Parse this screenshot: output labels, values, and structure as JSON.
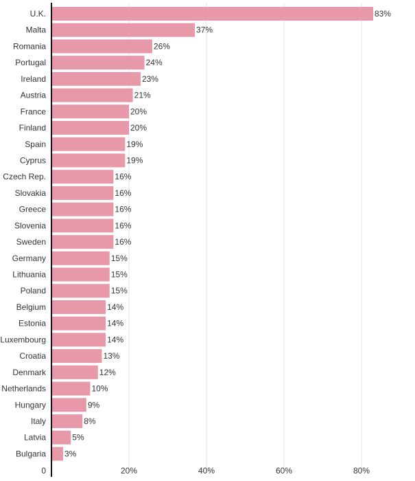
{
  "chart_data": {
    "type": "bar",
    "orientation": "horizontal",
    "title": "",
    "xlabel": "",
    "ylabel": "",
    "xlim": [
      0,
      83
    ],
    "grid": true,
    "categories": [
      "U.K.",
      "Malta",
      "Romania",
      "Portugal",
      "Ireland",
      "Austria",
      "France",
      "Finland",
      "Spain",
      "Cyprus",
      "Czech Rep.",
      "Slovakia",
      "Greece",
      "Slovenia",
      "Sweden",
      "Germany",
      "Lithuania",
      "Poland",
      "Belgium",
      "Estonia",
      "Luxembourg",
      "Croatia",
      "Denmark",
      "Netherlands",
      "Hungary",
      "Italy",
      "Latvia",
      "Bulgaria"
    ],
    "values": [
      83,
      37,
      26,
      24,
      23,
      21,
      20,
      20,
      19,
      19,
      16,
      16,
      16,
      16,
      16,
      15,
      15,
      15,
      14,
      14,
      14,
      13,
      12,
      10,
      9,
      8,
      5,
      3
    ],
    "value_labels": [
      "83%",
      "37%",
      "26%",
      "24%",
      "23%",
      "21%",
      "20%",
      "20%",
      "19%",
      "19%",
      "16%",
      "16%",
      "16%",
      "16%",
      "16%",
      "15%",
      "15%",
      "15%",
      "14%",
      "14%",
      "14%",
      "13%",
      "12%",
      "10%",
      "9%",
      "8%",
      "5%",
      "3%"
    ],
    "x_ticks": [
      0,
      20,
      40,
      60,
      80
    ],
    "x_tick_labels": [
      "0",
      "20%",
      "40%",
      "60%",
      "80%"
    ],
    "bar_color": "#e899a9",
    "axis_color": "#111111",
    "grid_color": "#e6e6e6",
    "text_color": "#333333"
  }
}
